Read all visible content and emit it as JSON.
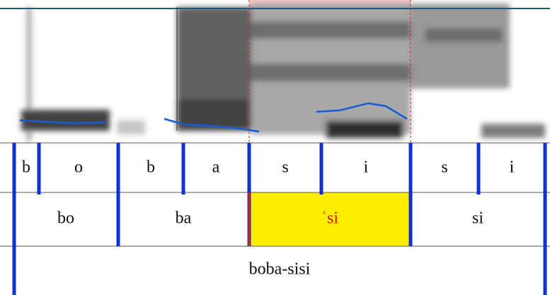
{
  "tiers": [
    {
      "labels": [
        "b",
        "o",
        "b",
        "a",
        "s",
        "i",
        "s",
        "i"
      ]
    },
    {
      "labels": [
        "bo",
        "ba",
        "ˈsi",
        "si"
      ]
    },
    {
      "labels": [
        "boba-sisi"
      ]
    }
  ]
}
